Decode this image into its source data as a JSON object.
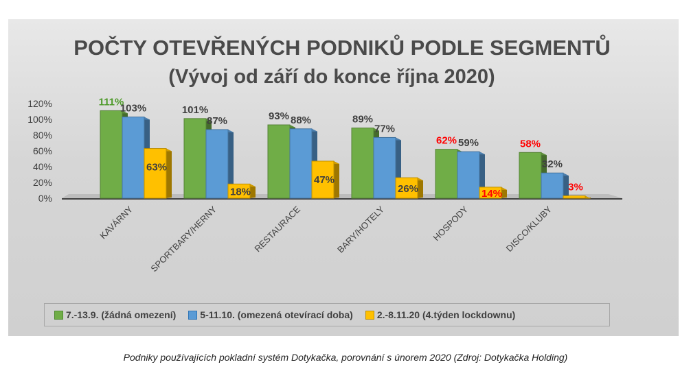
{
  "chart_data": {
    "type": "bar",
    "title": "POČTY OTEVŘENÝCH PODNIKŮ PODLE SEGMENTŮ",
    "subtitle": "(Vývoj od září do konce října 2020)",
    "categories": [
      "KAVÁRNY",
      "SPORTBARY/HERNY",
      "RESTAURACE",
      "BARY/HOTELY",
      "HOSPODY",
      "DISCO/KLUBY"
    ],
    "series": [
      {
        "name": "7.-13.9. (žádná omezení)",
        "color": "#70ad47",
        "values": [
          111,
          101,
          93,
          89,
          62,
          58
        ],
        "labels": [
          "111%",
          "101%",
          "93%",
          "89%",
          "62%",
          "58%"
        ],
        "label_colors": [
          "#4e9a2a",
          "#3f3f3f",
          "#3f3f3f",
          "#3f3f3f",
          "#ff0000",
          "#ff0000"
        ]
      },
      {
        "name": "5-11.10. (omezená otevírací doba)",
        "color": "#5b9bd5",
        "values": [
          103,
          87,
          88,
          77,
          59,
          32
        ],
        "labels": [
          "103%",
          "87%",
          "88%",
          "77%",
          "59%",
          "32%"
        ],
        "label_colors": [
          "#3f3f3f",
          "#3f3f3f",
          "#3f3f3f",
          "#3f3f3f",
          "#3f3f3f",
          "#3f3f3f"
        ]
      },
      {
        "name": "2.-8.11.20 (4.týden lockdownu)",
        "color": "#ffc000",
        "values": [
          63,
          18,
          47,
          26,
          14,
          3
        ],
        "labels": [
          "63%",
          "18%",
          "47%",
          "26%",
          "14%",
          "3%"
        ],
        "label_colors": [
          "#3f3f3f",
          "#3f3f3f",
          "#3f3f3f",
          "#3f3f3f",
          "#ff0000",
          "#ff0000"
        ]
      }
    ],
    "yticks": [
      "120%",
      "100%",
      "80%",
      "60%",
      "40%",
      "20%",
      "0%"
    ],
    "ylim": [
      0,
      120
    ],
    "legend_position": "bottom",
    "grid": false
  },
  "caption": "Podniky používajících pokladní systém Dotykačka, porovnání s únorem 2020 (Zdroj: Dotykačka Holding)"
}
